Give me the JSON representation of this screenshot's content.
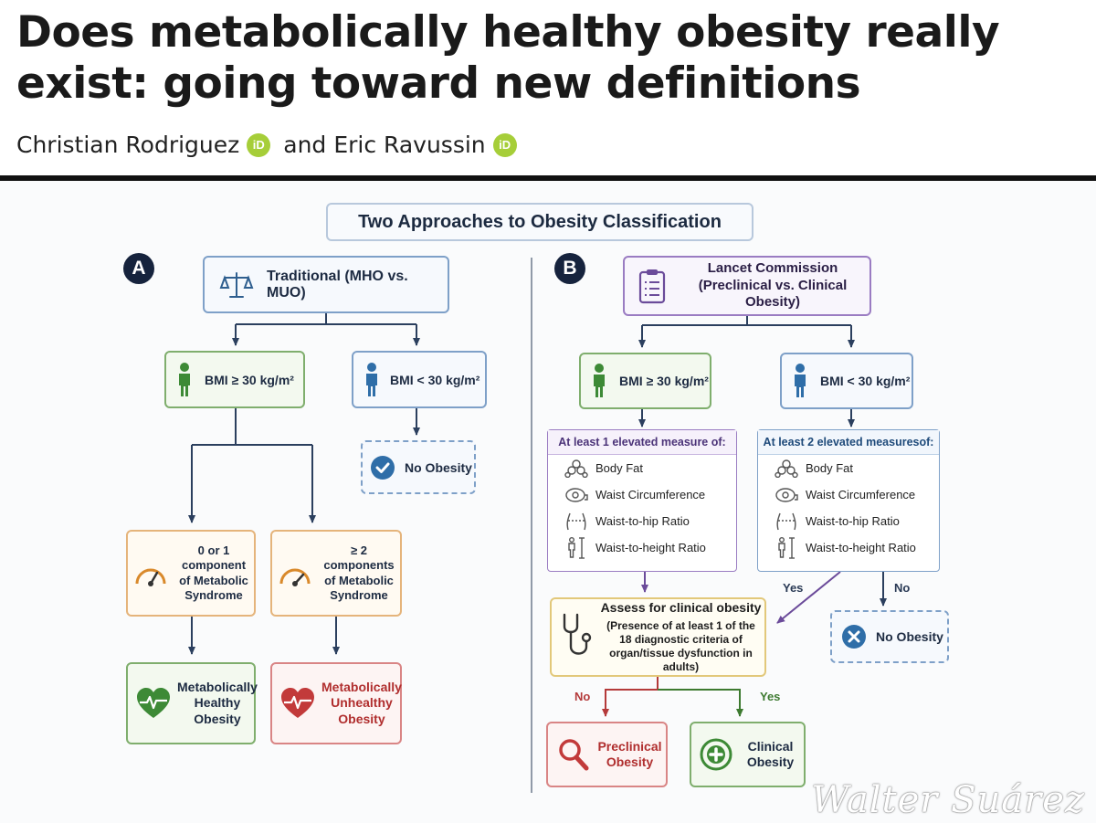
{
  "paper": {
    "title": "Does metabolically healthy obesity really exist: going toward new definitions",
    "authors": [
      {
        "name": "Christian Rodriguez",
        "badge": "iD"
      },
      {
        "name": "Eric Ravussin",
        "badge": "iD"
      }
    ],
    "author_conjunction": "and"
  },
  "figure": {
    "title": "Two Approaches to Obesity Classification",
    "panel_a": {
      "letter": "A",
      "header": "Traditional (MHO vs. MUO)",
      "bmi_high": "BMI ≥ 30 kg/m²",
      "bmi_low": "BMI < 30 kg/m²",
      "no_obesity": "No Obesity",
      "component_low": [
        "0 or 1 component",
        "of Metabolic",
        "Syndrome"
      ],
      "component_high": [
        "≥ 2 components",
        "of Metabolic",
        "Syndrome"
      ],
      "healthy": [
        "Metabolically",
        "Healthy",
        "Obesity"
      ],
      "unhealthy": [
        "Metabolically",
        "Unhealthy",
        "Obesity"
      ]
    },
    "panel_b": {
      "letter": "B",
      "header_line1": "Lancet Commission",
      "header_line2": "(Preclinical vs. Clinical Obesity)",
      "bmi_high": "BMI ≥ 30 kg/m²",
      "bmi_low": "BMI < 30 kg/m²",
      "measures_high_heading": "At least 1 elevated measure of:",
      "measures_low_heading": "At least 2 elevated measuresof:",
      "measures": [
        {
          "icon": "body-fat-icon",
          "label": "Body Fat"
        },
        {
          "icon": "tape-measure-icon",
          "label": "Waist Circumference"
        },
        {
          "icon": "hip-icon",
          "label": "Waist-to-hip Ratio"
        },
        {
          "icon": "height-icon",
          "label": "Waist-to-height Ratio"
        }
      ],
      "yes": "Yes",
      "no": "No",
      "assess_title": "Assess for clinical obesity",
      "assess_body": [
        "(Presence of at least 1 of the",
        "18 diagnostic criteria of",
        "organ/tissue dysfunction in adults)"
      ],
      "no_obesity": "No Obesity",
      "preclinical": [
        "Preclinical",
        "Obesity"
      ],
      "clinical": [
        "Clinical",
        "Obesity"
      ]
    },
    "watermark": "Walter Suárez",
    "colors": {
      "navy": "#16233d",
      "blue": "#2f6ea8",
      "green": "#3d8a36",
      "purple": "#6b4b9a",
      "orange": "#d9892b",
      "red": "#c23a3a"
    }
  }
}
